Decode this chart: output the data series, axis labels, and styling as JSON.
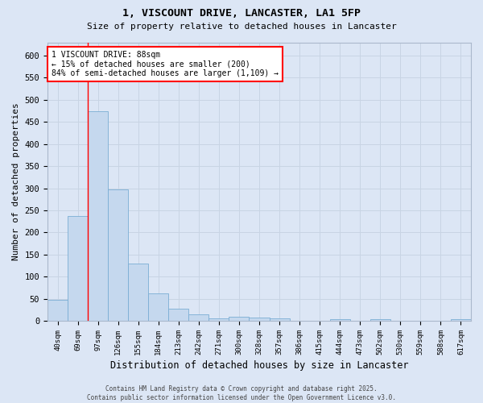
{
  "title_line1": "1, VISCOUNT DRIVE, LANCASTER, LA1 5FP",
  "title_line2": "Size of property relative to detached houses in Lancaster",
  "xlabel": "Distribution of detached houses by size in Lancaster",
  "ylabel": "Number of detached properties",
  "bar_labels": [
    "40sqm",
    "69sqm",
    "97sqm",
    "126sqm",
    "155sqm",
    "184sqm",
    "213sqm",
    "242sqm",
    "271sqm",
    "300sqm",
    "328sqm",
    "357sqm",
    "386sqm",
    "415sqm",
    "444sqm",
    "473sqm",
    "502sqm",
    "530sqm",
    "559sqm",
    "588sqm",
    "617sqm"
  ],
  "bar_values": [
    48,
    238,
    474,
    297,
    130,
    63,
    28,
    14,
    6,
    9,
    7,
    5,
    0,
    0,
    3,
    0,
    3,
    0,
    0,
    0,
    3
  ],
  "bar_color": "#c5d8ee",
  "bar_edge_color": "#7aadd4",
  "grid_color": "#c8d4e4",
  "background_color": "#dce6f5",
  "annotation_line1": "1 VISCOUNT DRIVE: 88sqm",
  "annotation_line2": "← 15% of detached houses are smaller (200)",
  "annotation_line3": "84% of semi-detached houses are larger (1,109) →",
  "red_line_bar_index": 2,
  "ylim": [
    0,
    630
  ],
  "yticks": [
    0,
    50,
    100,
    150,
    200,
    250,
    300,
    350,
    400,
    450,
    500,
    550,
    600
  ],
  "footnote_line1": "Contains HM Land Registry data © Crown copyright and database right 2025.",
  "footnote_line2": "Contains public sector information licensed under the Open Government Licence v3.0."
}
